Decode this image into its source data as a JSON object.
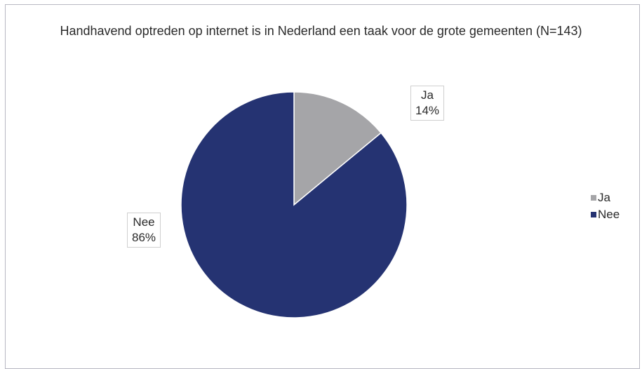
{
  "chart_data": {
    "type": "pie",
    "title": "Handhavend optreden op internet is in Nederland een taak voor de grote gemeenten (N=143)",
    "slices": [
      {
        "name": "Ja",
        "value": 14,
        "label": "14%",
        "color": "#a5a5a8"
      },
      {
        "name": "Nee",
        "value": 86,
        "label": "86%",
        "color": "#253372"
      }
    ],
    "legend": {
      "placement": "right",
      "entries": [
        "Ja",
        "Nee"
      ]
    }
  }
}
